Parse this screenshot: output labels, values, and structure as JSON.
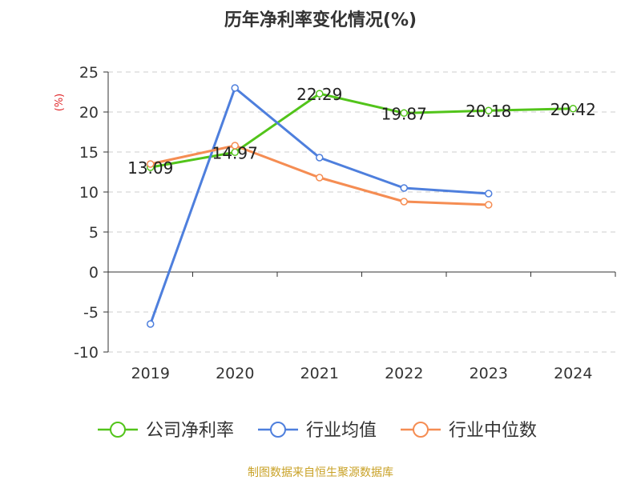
{
  "chart_data": {
    "type": "line",
    "title": "历年净利率变化情况(%)",
    "ylabel": "(%)",
    "categories": [
      "2019",
      "2020",
      "2021",
      "2022",
      "2023",
      "2024"
    ],
    "ylim": [
      -10,
      25
    ],
    "yticks": [
      -10,
      -5,
      0,
      5,
      10,
      15,
      20,
      25
    ],
    "grid": true,
    "legend_position": "bottom",
    "series": [
      {
        "name": "公司净利率",
        "color": "#52c41a",
        "values": [
          13.09,
          14.97,
          22.29,
          19.87,
          20.18,
          20.42
        ],
        "labels": [
          "13.09",
          "14.97",
          "22.29",
          "19.87",
          "20.18",
          "20.42"
        ]
      },
      {
        "name": "行业均值",
        "color": "#4e7fdd",
        "values": [
          -6.5,
          23.0,
          14.3,
          10.5,
          9.8,
          null
        ]
      },
      {
        "name": "行业中位数",
        "color": "#f58d53",
        "values": [
          13.5,
          15.8,
          11.8,
          8.8,
          8.4,
          null
        ]
      }
    ]
  },
  "source": "制图数据来自恒生聚源数据库"
}
